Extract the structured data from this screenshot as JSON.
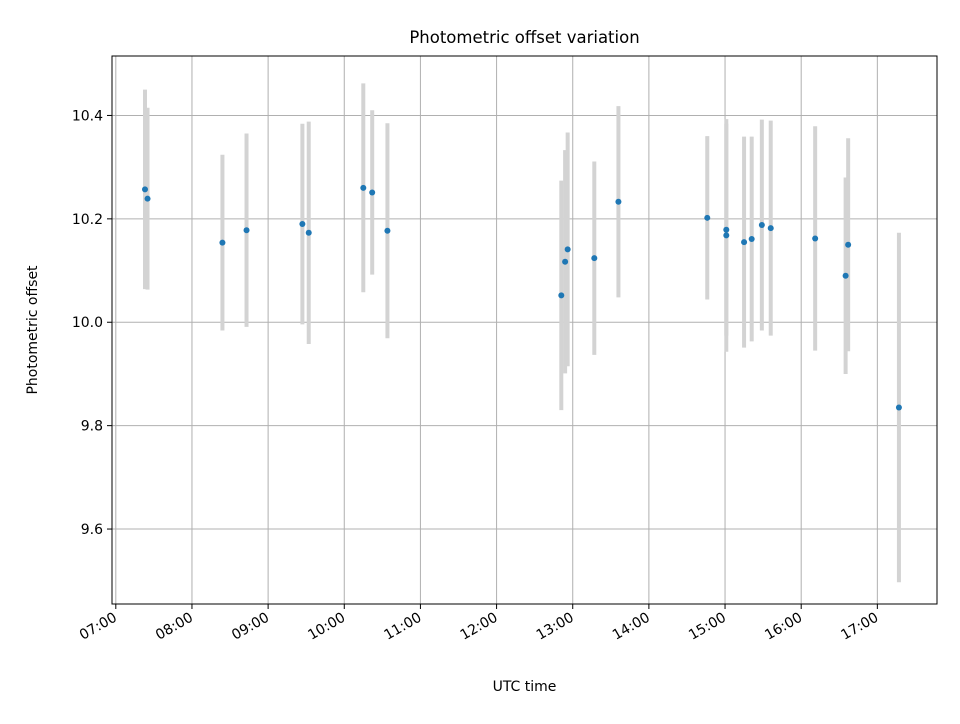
{
  "chart_data": {
    "type": "scatter",
    "title": "Photometric offset variation",
    "xlabel": "UTC time",
    "ylabel": "Photometric offset",
    "xlim": [
      "06:57",
      "17:47"
    ],
    "ylim": [
      9.455,
      10.515
    ],
    "x_ticks": [
      "07:00",
      "08:00",
      "09:00",
      "10:00",
      "11:00",
      "12:00",
      "13:00",
      "14:00",
      "15:00",
      "16:00",
      "17:00"
    ],
    "y_ticks": [
      "9.6",
      "9.8",
      "10.0",
      "10.2",
      "10.4"
    ],
    "grid": true,
    "colors": {
      "point": "#1f77b4",
      "errorbar": "#d3d3d3",
      "grid": "#b0b0b0"
    },
    "points": [
      {
        "x": "07:23",
        "y": 10.257,
        "yerr": 0.193
      },
      {
        "x": "07:25",
        "y": 10.239,
        "yerr": 0.176
      },
      {
        "x": "08:24",
        "y": 10.154,
        "yerr": 0.17
      },
      {
        "x": "08:43",
        "y": 10.178,
        "yerr": 0.187
      },
      {
        "x": "09:27",
        "y": 10.19,
        "yerr": 0.194
      },
      {
        "x": "09:32",
        "y": 10.173,
        "yerr": 0.215
      },
      {
        "x": "10:15",
        "y": 10.26,
        "yerr": 0.202
      },
      {
        "x": "10:22",
        "y": 10.251,
        "yerr": 0.159
      },
      {
        "x": "10:34",
        "y": 10.177,
        "yerr": 0.208
      },
      {
        "x": "12:51",
        "y": 10.052,
        "yerr": 0.222
      },
      {
        "x": "12:54",
        "y": 10.117,
        "yerr": 0.216
      },
      {
        "x": "12:56",
        "y": 10.141,
        "yerr": 0.226
      },
      {
        "x": "13:17",
        "y": 10.124,
        "yerr": 0.187
      },
      {
        "x": "13:36",
        "y": 10.233,
        "yerr": 0.185
      },
      {
        "x": "14:46",
        "y": 10.202,
        "yerr": 0.158
      },
      {
        "x": "15:01",
        "y": 10.179,
        "yerr": 0.205
      },
      {
        "x": "15:01",
        "y": 10.168,
        "yerr": 0.225
      },
      {
        "x": "15:15",
        "y": 10.155,
        "yerr": 0.204
      },
      {
        "x": "15:21",
        "y": 10.161,
        "yerr": 0.198
      },
      {
        "x": "15:29",
        "y": 10.188,
        "yerr": 0.204
      },
      {
        "x": "15:36",
        "y": 10.182,
        "yerr": 0.208
      },
      {
        "x": "16:11",
        "y": 10.162,
        "yerr": 0.217
      },
      {
        "x": "16:35",
        "y": 10.09,
        "yerr": 0.19
      },
      {
        "x": "16:37",
        "y": 10.15,
        "yerr": 0.206
      },
      {
        "x": "17:17",
        "y": 9.835,
        "yerr": 0.338
      }
    ]
  }
}
